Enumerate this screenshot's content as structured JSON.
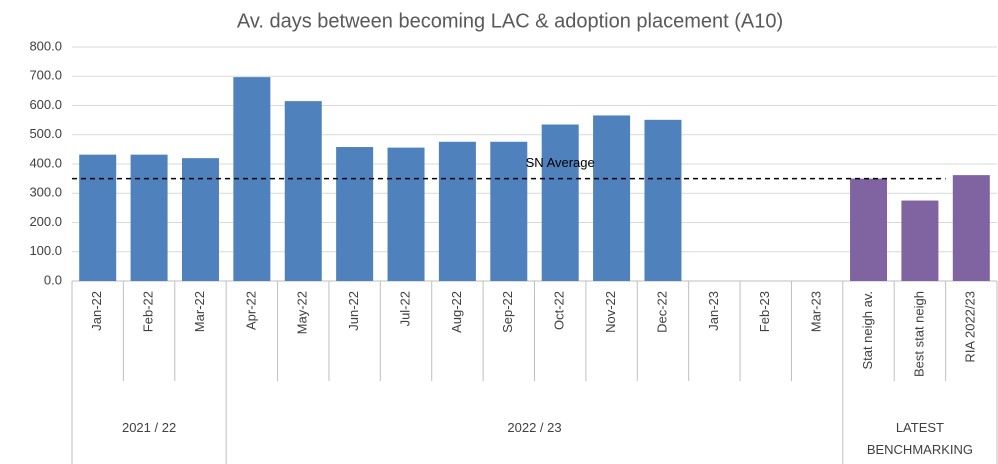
{
  "chart_data": {
    "type": "bar",
    "title": "Av. days between becoming LAC & adoption placement (A10)",
    "groups": [
      {
        "name": "2021 / 22",
        "color": "#4f81bd",
        "categories": [
          "Jan-22",
          "Feb-22",
          "Mar-22"
        ],
        "values": [
          432,
          432,
          420
        ]
      },
      {
        "name": "2022 / 23",
        "color": "#4f81bd",
        "categories": [
          "Apr-22",
          "May-22",
          "Jun-22",
          "Jul-22",
          "Aug-22",
          "Sep-22",
          "Oct-22",
          "Nov-22",
          "Dec-22",
          "Jan-23",
          "Feb-23",
          "Mar-23"
        ],
        "values": [
          697,
          615,
          458,
          456,
          476,
          476,
          535,
          566,
          551,
          null,
          null,
          null
        ]
      },
      {
        "name": "LATEST BENCHMARKING",
        "color": "#8064a2",
        "categories": [
          "Stat neigh av.",
          "Best stat neigh",
          "RIA 2022/23"
        ],
        "values": [
          350,
          275,
          362
        ]
      }
    ],
    "reference_line": {
      "label": "SN Average",
      "value": 350
    },
    "ylim": [
      0,
      800
    ],
    "yticks": [
      {
        "value": 0,
        "label": "0.0"
      },
      {
        "value": 100,
        "label": "100.0"
      },
      {
        "value": 200,
        "label": "200.0"
      },
      {
        "value": 300,
        "label": "300.0"
      },
      {
        "value": 400,
        "label": "400.0"
      },
      {
        "value": 500,
        "label": "500.0"
      },
      {
        "value": 600,
        "label": "600.0"
      },
      {
        "value": 700,
        "label": "700.0"
      },
      {
        "value": 800,
        "label": "800.0"
      }
    ],
    "grid": true
  }
}
